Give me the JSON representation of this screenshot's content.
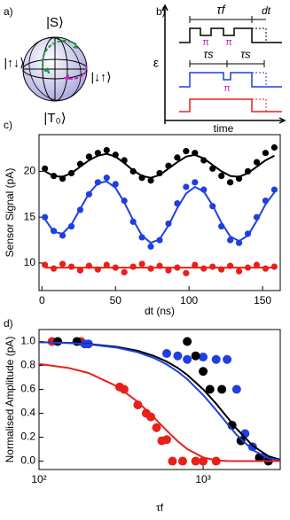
{
  "panels": {
    "a": {
      "label": "a)",
      "top_state": "|S⟩",
      "left_state": "|↑↓⟩",
      "right_state": "|↓↑⟩",
      "bottom_state": "|T₀⟩"
    },
    "b": {
      "label": "b)",
      "tau_f": "τf",
      "dt": "dt",
      "pi_1": "π",
      "pi_2": "π",
      "pi_3": "π",
      "y_label": "ε",
      "tau_s_1": "τs",
      "tau_s_2": "τs",
      "x_label": "time"
    },
    "c": {
      "label": "c)"
    },
    "d": {
      "label": "d)"
    }
  },
  "chart_data": [
    {
      "type": "scatter",
      "x_label": "dt (ns)",
      "y_label": "Sensor Signal (pA)",
      "xlim": [
        -2,
        162
      ],
      "ylim": [
        7,
        24
      ],
      "xticks": [
        0,
        50,
        100,
        150
      ],
      "yticks": [
        10,
        15,
        20
      ],
      "x": [
        2,
        8,
        14,
        20,
        26,
        32,
        38,
        44,
        50,
        56,
        62,
        68,
        74,
        80,
        86,
        92,
        98,
        104,
        110,
        116,
        122,
        128,
        134,
        140,
        146,
        152,
        158
      ],
      "series": [
        {
          "mode": "markers",
          "color": "#000000",
          "values": [
            20.3,
            19.5,
            19.2,
            19.8,
            20.8,
            21.6,
            22.0,
            22.3,
            21.8,
            21.2,
            20.0,
            19.3,
            19.0,
            19.8,
            20.6,
            21.5,
            22.2,
            22.0,
            21.2,
            20.3,
            19.5,
            18.8,
            19.2,
            20.0,
            21.0,
            22.0,
            22.6
          ]
        },
        {
          "mode": "line",
          "color": "#000000",
          "values": [
            20.0,
            19.5,
            19.4,
            19.8,
            20.5,
            21.2,
            21.7,
            21.9,
            21.6,
            20.9,
            20.1,
            19.5,
            19.3,
            19.6,
            20.3,
            21.0,
            21.6,
            21.8,
            21.4,
            20.7,
            20.0,
            19.5,
            19.4,
            19.8,
            20.5,
            21.2,
            21.7
          ]
        },
        {
          "mode": "markers",
          "color": "#1f3fe0",
          "values": [
            15.0,
            13.5,
            13.0,
            14.0,
            15.8,
            17.5,
            18.8,
            19.3,
            18.6,
            16.8,
            14.5,
            12.8,
            11.8,
            12.5,
            14.3,
            16.5,
            18.3,
            18.8,
            18.0,
            16.2,
            14.0,
            12.5,
            12.2,
            13.2,
            15.0,
            16.8,
            18.0
          ]
        },
        {
          "mode": "line",
          "color": "#1f3fe0",
          "values": [
            14.8,
            13.4,
            13.2,
            14.2,
            15.9,
            17.6,
            18.7,
            18.9,
            18.2,
            16.6,
            14.7,
            13.0,
            12.2,
            12.6,
            14.1,
            16.0,
            17.6,
            18.3,
            17.8,
            16.3,
            14.4,
            12.9,
            12.4,
            13.0,
            14.6,
            16.4,
            17.7
          ]
        },
        {
          "mode": "markers",
          "color": "#e8201a",
          "values": [
            9.8,
            9.4,
            9.9,
            9.6,
            9.2,
            9.7,
            9.3,
            9.8,
            9.5,
            9.0,
            9.6,
            9.9,
            9.4,
            9.7,
            9.2,
            9.5,
            8.9,
            9.8,
            9.4,
            9.6,
            9.3,
            9.7,
            9.1,
            9.5,
            9.8,
            9.4,
            9.6
          ]
        },
        {
          "mode": "line",
          "color": "#e8201a",
          "values": [
            9.5,
            9.5,
            9.5,
            9.5,
            9.5,
            9.5,
            9.5,
            9.5,
            9.5,
            9.5,
            9.5,
            9.5,
            9.5,
            9.5,
            9.5,
            9.5,
            9.5,
            9.5,
            9.5,
            9.5,
            9.5,
            9.5,
            9.5,
            9.5,
            9.5,
            9.5,
            9.5
          ]
        }
      ]
    },
    {
      "type": "scatter",
      "x_label": "τf",
      "y_label": "Normalised Amplitude (pA)",
      "xlog": true,
      "xlim": [
        100,
        2950
      ],
      "ylim": [
        -0.07,
        1.1
      ],
      "xticks": [
        {
          "value": 100,
          "label": "10²"
        },
        {
          "value": 1000,
          "label": "10³"
        }
      ],
      "yticks": [
        {
          "value": 0,
          "label": "0.0"
        },
        0.2,
        0.4,
        0.6,
        0.8,
        {
          "value": 1,
          "label": "1.0"
        }
      ],
      "series": [
        {
          "mode": "markers",
          "color": "#e8201a",
          "x": [
            120,
            180,
            310,
            330,
            400,
            450,
            480,
            520,
            560,
            600,
            650,
            750,
            900,
            1000,
            1200
          ],
          "values": [
            1,
            1,
            0.62,
            0.6,
            0.47,
            0.4,
            0.37,
            0.28,
            0.17,
            0.18,
            0,
            0,
            0,
            0,
            0
          ]
        },
        {
          "mode": "markers",
          "color": "#1f3fe0",
          "x": [
            190,
            200,
            600,
            700,
            800,
            1000,
            1200,
            1400,
            1600,
            1800,
            2000,
            2300
          ],
          "values": [
            0.98,
            0.98,
            0.9,
            0.88,
            0.85,
            0.87,
            0.85,
            0.85,
            0.6,
            0.23,
            0.12,
            0.03
          ]
        },
        {
          "mode": "markers",
          "color": "#000000",
          "x": [
            130,
            170,
            800,
            900,
            1000,
            1100,
            1300,
            1500,
            1700,
            2200,
            2500
          ],
          "values": [
            1,
            1,
            1.0,
            0.88,
            0.75,
            0.6,
            0.6,
            0.3,
            0.17,
            0.03,
            0
          ]
        },
        {
          "mode": "line",
          "color": "#000000",
          "x": [
            100,
            150,
            200,
            300,
            400,
            500,
            600,
            700,
            800,
            1000,
            1200,
            1400,
            1600,
            2000,
            2500,
            2950
          ],
          "values": [
            0.995,
            0.989,
            0.98,
            0.955,
            0.922,
            0.88,
            0.832,
            0.779,
            0.721,
            0.6,
            0.48,
            0.368,
            0.271,
            0.13,
            0.041,
            0.012
          ]
        },
        {
          "mode": "line",
          "color": "#1f3fe0",
          "x": [
            100,
            150,
            200,
            300,
            400,
            500,
            600,
            700,
            800,
            1000,
            1200,
            1400,
            1600,
            2000,
            2500,
            2950
          ],
          "values": [
            0.994,
            0.987,
            0.977,
            0.948,
            0.91,
            0.863,
            0.808,
            0.748,
            0.685,
            0.553,
            0.427,
            0.314,
            0.22,
            0.094,
            0.025,
            0.006
          ]
        },
        {
          "mode": "line",
          "color": "#e8201a",
          "x": [
            100,
            150,
            200,
            300,
            400,
            500,
            600,
            700,
            800,
            1000,
            1200,
            1400,
            1600,
            2000,
            2500,
            2950
          ],
          "values": [
            0.812,
            0.78,
            0.737,
            0.624,
            0.495,
            0.368,
            0.255,
            0.166,
            0.101,
            0.031,
            0.007,
            0.001,
            0,
            0,
            0,
            0
          ]
        }
      ]
    }
  ]
}
